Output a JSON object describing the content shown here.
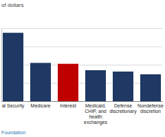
{
  "chart_data": {
    "type": "bar",
    "title": "of dollars",
    "categories": [
      "al Security",
      "Medicare",
      "Interest",
      "Medicaid, CHIP, and health exchanges",
      "Defense discretionary",
      "Nondefense discretion"
    ],
    "values": [
      1500,
      840,
      820,
      680,
      650,
      590
    ],
    "colors": [
      "#1f3864",
      "#1f3864",
      "#c00000",
      "#1f3864",
      "#1f3864",
      "#1f3864"
    ],
    "ylim": [
      0,
      1600
    ],
    "yticks": [
      0,
      400,
      800,
      1200,
      1600
    ],
    "grid": true,
    "tick_labels": false,
    "source": "Foundation"
  }
}
